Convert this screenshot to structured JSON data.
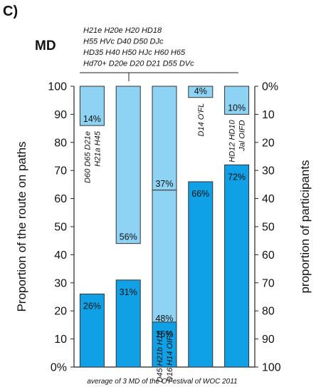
{
  "panel_label": "C)",
  "chart_data": {
    "type": "bar",
    "title": "MD",
    "ylabel_left": "Proportion of the route on paths",
    "ylabel_right": "proportion of participants",
    "footnote": "average of 3 MD of the O'Festival of WOC 2011",
    "ylim_left": [
      0,
      100
    ],
    "ylim_right": [
      100,
      0
    ],
    "left_ticks": [
      "0%",
      "10",
      "20",
      "30",
      "40",
      "50",
      "60",
      "70",
      "80",
      "90",
      "100"
    ],
    "right_ticks": [
      "100",
      "90",
      "80",
      "70",
      "60",
      "50",
      "40",
      "30",
      "20",
      "10",
      "0%"
    ],
    "grid": false,
    "colors": {
      "path_bars": "#0fa0e6",
      "participant_bars": "#8fd3f4",
      "outline": "#333333"
    },
    "header_categories": [
      "H21e H20e H20 HD18",
      "H55 HVc D40 D50 DJc",
      "HD35 H40 H50 HJc H60 H65",
      "Hd70+ D20e D20 D21 D55 DVc"
    ],
    "groups": [
      {
        "categories": [
          "D60 D65 D21e",
          "H21a H45"
        ],
        "path_value": 26,
        "path_label": "26%",
        "participants": [
          {
            "value": 14,
            "label": "14%"
          }
        ]
      },
      {
        "categories": [],
        "path_value": 31,
        "path_label": "31%",
        "participants": [
          {
            "value": 56,
            "label": "56%"
          }
        ]
      },
      {
        "categories": [
          "D45 H21b H16",
          "D16 H14 OIFS"
        ],
        "path_value": 16,
        "path_label": "16%",
        "participants": [
          {
            "value": 37,
            "label": "37%"
          },
          {
            "value": 48,
            "label": "48%"
          }
        ]
      },
      {
        "categories": [
          "D14 O'FL"
        ],
        "path_value": 66,
        "path_label": "66%",
        "participants": [
          {
            "value": 4,
            "label": "4%"
          }
        ]
      },
      {
        "categories": [
          "HD12 HD10",
          "Jal OIFD"
        ],
        "path_value": 72,
        "path_label": "72%",
        "participants": [
          {
            "value": 10,
            "label": "10%"
          }
        ]
      }
    ]
  }
}
